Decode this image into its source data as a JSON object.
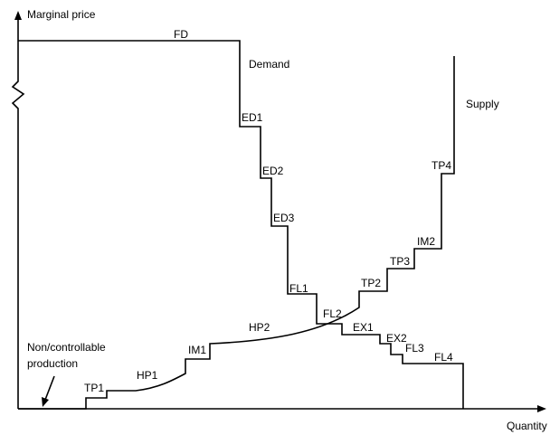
{
  "axes": {
    "y_label": "Marginal price",
    "x_label": "Quantity"
  },
  "curves": {
    "demand": "Demand",
    "supply": "Supply"
  },
  "annotation": {
    "lines": [
      "Non/controllable",
      "production"
    ]
  },
  "demand_steps": [
    "FD",
    "ED1",
    "ED2",
    "ED3",
    "FL1",
    "FL2",
    "EX1",
    "EX2",
    "FL3",
    "FL4"
  ],
  "supply_steps": [
    "TP1",
    "HP1",
    "IM1",
    "HP2",
    "TP2",
    "TP3",
    "IM2",
    "TP4"
  ]
}
